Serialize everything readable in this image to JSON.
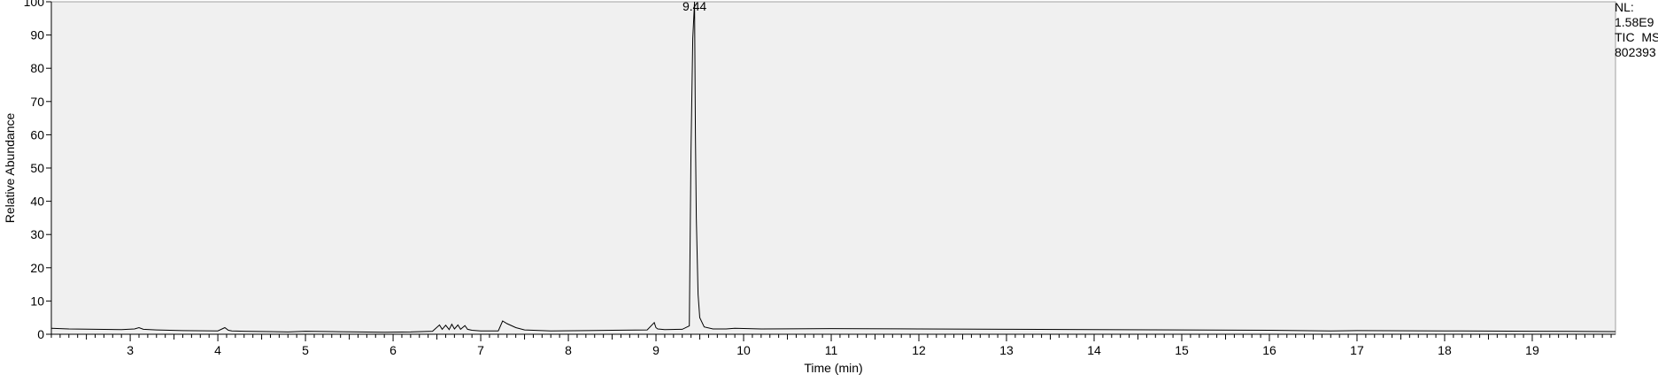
{
  "chart_data": {
    "type": "line",
    "xlabel": "Time (min)",
    "ylabel": "Relative Abundance",
    "xlim": [
      2.1,
      19.95
    ],
    "ylim": [
      0,
      100
    ],
    "x_ticks": [
      3,
      4,
      5,
      6,
      7,
      8,
      9,
      10,
      11,
      12,
      13,
      14,
      15,
      16,
      17,
      18,
      19
    ],
    "y_ticks": [
      0,
      10,
      20,
      30,
      40,
      50,
      60,
      70,
      80,
      90,
      100
    ],
    "grid": false,
    "peak_labels": [
      {
        "x": 9.44,
        "y": 100,
        "text": "9.44"
      }
    ],
    "series": [
      {
        "x": [
          2.1,
          2.3,
          2.6,
          2.9,
          3.05,
          3.1,
          3.15,
          3.3,
          3.6,
          4.0,
          4.08,
          4.12,
          4.16,
          4.3,
          4.6,
          4.8,
          5.0,
          5.3,
          5.6,
          5.9,
          6.2,
          6.45,
          6.53,
          6.56,
          6.6,
          6.64,
          6.67,
          6.7,
          6.74,
          6.77,
          6.82,
          6.85,
          6.9,
          7.0,
          7.2,
          7.25,
          7.3,
          7.4,
          7.5,
          7.8,
          8.2,
          8.5,
          8.9,
          8.98,
          9.0,
          9.02,
          9.1,
          9.3,
          9.38,
          9.4,
          9.42,
          9.44,
          9.45,
          9.46,
          9.48,
          9.5,
          9.55,
          9.65,
          9.8,
          9.9,
          10.2,
          11.0,
          12.0,
          13.0,
          14.0,
          15.0,
          16.0,
          16.7,
          17.0,
          18.0,
          19.0,
          19.95
        ],
        "y": [
          1.8,
          1.6,
          1.5,
          1.4,
          1.6,
          2.0,
          1.5,
          1.3,
          1.1,
          1.0,
          2.0,
          1.2,
          1.0,
          0.9,
          0.8,
          0.7,
          0.9,
          0.8,
          0.7,
          0.6,
          0.7,
          0.9,
          2.8,
          1.5,
          2.7,
          1.4,
          3.0,
          1.6,
          2.8,
          1.5,
          2.6,
          1.5,
          1.2,
          1.0,
          1.0,
          4.0,
          3.2,
          2.0,
          1.3,
          1.0,
          1.1,
          1.2,
          1.3,
          3.5,
          2.0,
          1.6,
          1.4,
          1.5,
          2.5,
          55,
          89,
          100,
          60,
          35,
          12,
          5,
          2.2,
          1.6,
          1.6,
          1.8,
          1.6,
          1.7,
          1.6,
          1.5,
          1.4,
          1.3,
          1.2,
          1.0,
          1.1,
          1.0,
          0.9,
          0.8
        ]
      }
    ]
  },
  "info": {
    "nl_label": "NL:",
    "nl_value": "1.58E9",
    "scan_label": "TIC  MS",
    "file_id": "802393"
  }
}
